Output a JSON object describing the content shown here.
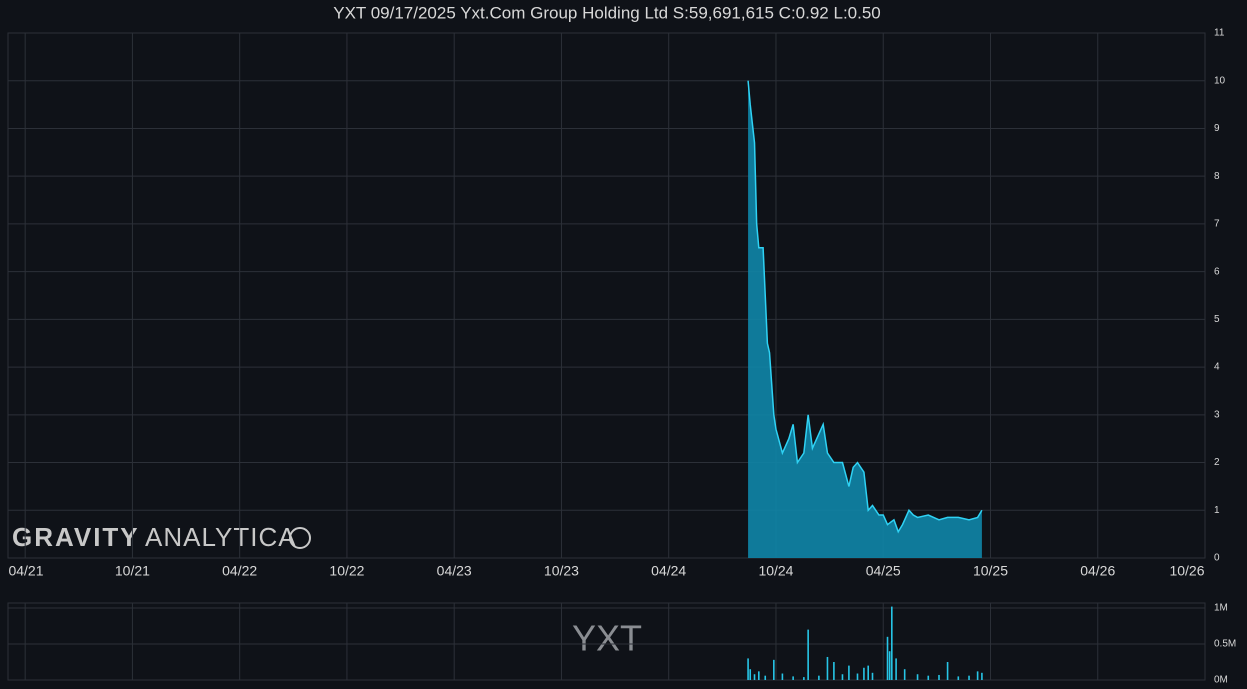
{
  "branding": {
    "logo_bold": "GRAVITY",
    "logo_light": "ANALYTICA"
  },
  "chart_data": [
    {
      "type": "area",
      "title": "YXT 09/17/2025 Yxt.Com Group Holding Ltd S:59,691,615 C:0.92 L:0.50",
      "color": "#2fd2f4",
      "x": [
        2024.62,
        2024.63,
        2024.65,
        2024.66,
        2024.67,
        2024.69,
        2024.71,
        2024.72,
        2024.74,
        2024.75,
        2024.78,
        2024.81,
        2024.83,
        2024.85,
        2024.88,
        2024.9,
        2024.92,
        2024.95,
        2024.97,
        2024.99,
        2025.02,
        2025.04,
        2025.06,
        2025.09,
        2025.11,
        2025.13,
        2025.16,
        2025.18,
        2025.2,
        2025.23,
        2025.25,
        2025.27,
        2025.3,
        2025.32,
        2025.34,
        2025.37,
        2025.39,
        2025.41,
        2025.46,
        2025.51,
        2025.55,
        2025.6,
        2025.65,
        2025.69,
        2025.71
      ],
      "values": [
        10,
        9.5,
        8.7,
        7,
        6.5,
        6.5,
        4.5,
        4.3,
        3,
        2.7,
        2.2,
        2.5,
        2.8,
        2.0,
        2.2,
        3.0,
        2.3,
        2.6,
        2.8,
        2.2,
        2.0,
        2.0,
        2.0,
        1.5,
        1.9,
        2.0,
        1.8,
        1.0,
        1.1,
        0.9,
        0.9,
        0.7,
        0.8,
        0.55,
        0.7,
        1.0,
        0.9,
        0.85,
        0.9,
        0.8,
        0.85,
        0.85,
        0.8,
        0.85,
        1.0
      ],
      "xlim": [
        2021.17,
        2026.75
      ],
      "xticks": [
        {
          "value": 2021.25,
          "label": "04/21"
        },
        {
          "value": 2021.75,
          "label": "10/21"
        },
        {
          "value": 2022.25,
          "label": "04/22"
        },
        {
          "value": 2022.75,
          "label": "10/22"
        },
        {
          "value": 2023.25,
          "label": "04/23"
        },
        {
          "value": 2023.75,
          "label": "10/23"
        },
        {
          "value": 2024.25,
          "label": "04/24"
        },
        {
          "value": 2024.75,
          "label": "10/24"
        },
        {
          "value": 2025.25,
          "label": "04/25"
        },
        {
          "value": 2025.75,
          "label": "10/25"
        },
        {
          "value": 2026.25,
          "label": "04/26"
        },
        {
          "value": 2026.75,
          "label": "10/26"
        }
      ],
      "ylim": [
        0,
        11
      ],
      "yticks": [
        0,
        1,
        2,
        3,
        4,
        5,
        6,
        7,
        8,
        9,
        10,
        11
      ],
      "grid": true
    },
    {
      "type": "bar",
      "watermark": "YXT",
      "color": "#27c5e6",
      "x": [
        2024.62,
        2024.63,
        2024.65,
        2024.67,
        2024.7,
        2024.74,
        2024.78,
        2024.83,
        2024.88,
        2024.9,
        2024.95,
        2024.99,
        2025.02,
        2025.06,
        2025.09,
        2025.13,
        2025.16,
        2025.18,
        2025.2,
        2025.27,
        2025.28,
        2025.29,
        2025.31,
        2025.35,
        2025.41,
        2025.46,
        2025.51,
        2025.55,
        2025.6,
        2025.65,
        2025.69,
        2025.71
      ],
      "values": [
        300000,
        150000,
        80000,
        120000,
        60000,
        280000,
        90000,
        50000,
        40000,
        700000,
        60000,
        320000,
        250000,
        80000,
        200000,
        90000,
        170000,
        200000,
        100000,
        600000,
        400000,
        1020000,
        300000,
        150000,
        80000,
        60000,
        70000,
        250000,
        50000,
        60000,
        120000,
        100000
      ],
      "xlim": [
        2021.17,
        2026.75
      ],
      "xticks": [
        2021.25,
        2021.75,
        2022.25,
        2022.75,
        2023.25,
        2023.75,
        2024.25,
        2024.75,
        2025.25,
        2025.75,
        2026.25
      ],
      "ylim": [
        0,
        1070000
      ],
      "yticks": [
        {
          "value": 0,
          "label": "0M"
        },
        {
          "value": 500000,
          "label": "0.5M"
        },
        {
          "value": 1000000,
          "label": "1M"
        }
      ],
      "grid": true
    }
  ]
}
